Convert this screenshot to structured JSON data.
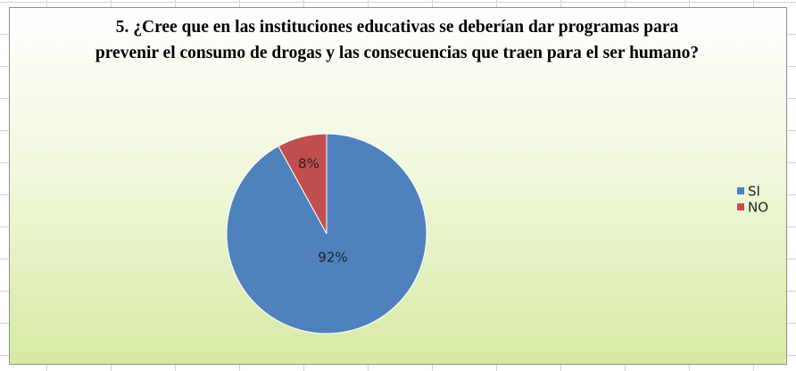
{
  "chart_data": {
    "type": "pie",
    "title": "5. ¿Cree que en las instituciones educativas se deberían dar programas para prevenir el consumo de drogas y las consecuencias que traen para el ser humano?",
    "categories": [
      "SI",
      "NO"
    ],
    "values": [
      92,
      8
    ],
    "value_labels": [
      "92%",
      "8%"
    ],
    "colors": [
      "#4f81bd",
      "#c0504d"
    ],
    "legend": "right"
  }
}
